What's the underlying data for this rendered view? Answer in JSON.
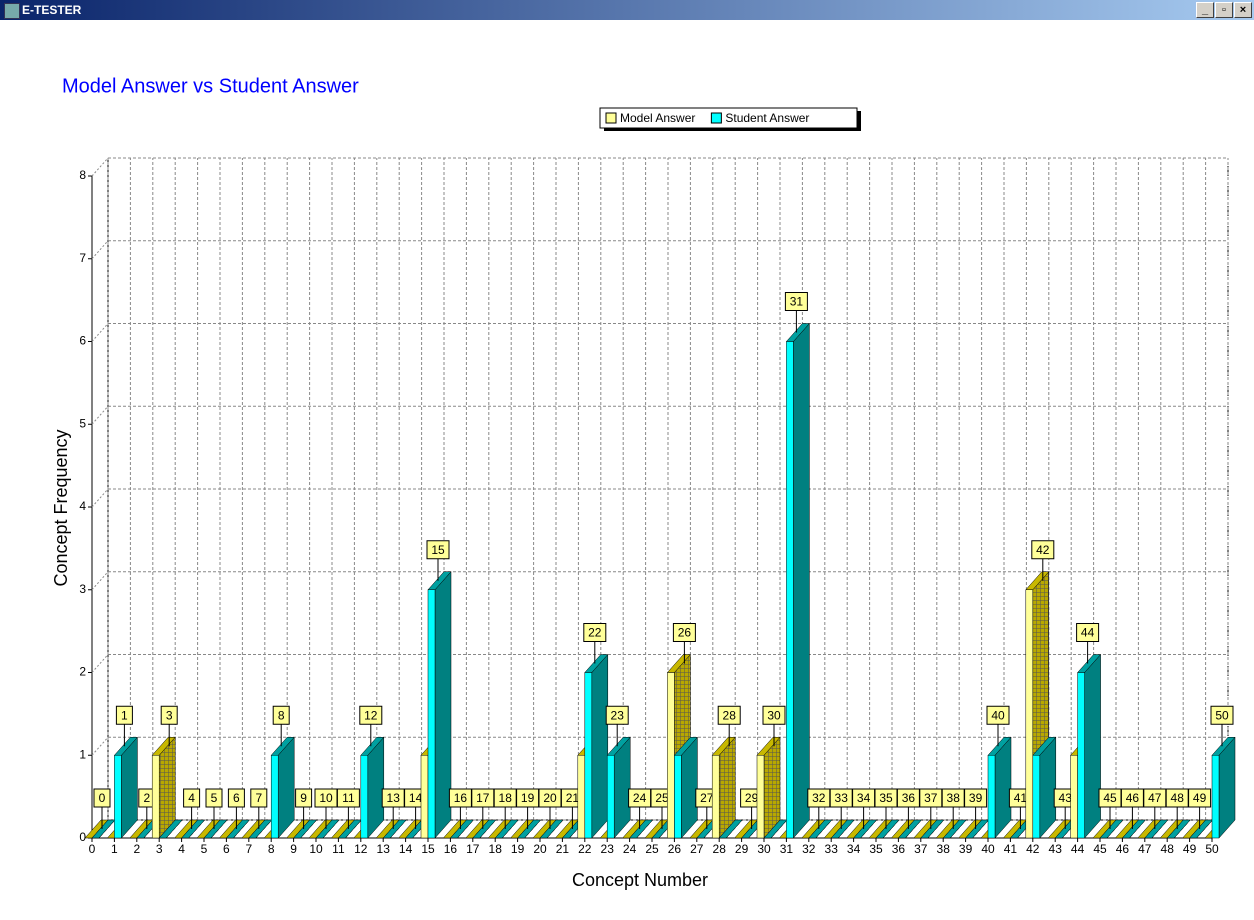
{
  "window": {
    "title": "E-TESTER"
  },
  "chart_data": {
    "type": "bar3d",
    "title": "Model Answer vs Student Answer",
    "x_label": "Concept Number",
    "y_label": "Concept Frequency",
    "categories": [
      "0",
      "1",
      "2",
      "3",
      "4",
      "5",
      "6",
      "7",
      "8",
      "9",
      "10",
      "11",
      "12",
      "13",
      "14",
      "15",
      "16",
      "17",
      "18",
      "19",
      "20",
      "21",
      "22",
      "23",
      "24",
      "25",
      "26",
      "27",
      "28",
      "29",
      "30",
      "31",
      "32",
      "33",
      "34",
      "35",
      "36",
      "37",
      "38",
      "39",
      "40",
      "41",
      "42",
      "43",
      "44",
      "45",
      "46",
      "47",
      "48",
      "49",
      "50"
    ],
    "series": [
      {
        "name": "Model Answer",
        "color": "#ffff99",
        "values": [
          0,
          0,
          0,
          1,
          0,
          0,
          0,
          0,
          0,
          0,
          0,
          0,
          0,
          0,
          0,
          1,
          0,
          0,
          0,
          0,
          0,
          0,
          1,
          0,
          0,
          0,
          2,
          0,
          1,
          0,
          1,
          0,
          0,
          0,
          0,
          0,
          0,
          0,
          0,
          0,
          0,
          0,
          3,
          0,
          1,
          0,
          0,
          0,
          0,
          0,
          0
        ]
      },
      {
        "name": "Student Answer",
        "color": "#00ffff",
        "values": [
          0,
          1,
          0,
          0,
          0,
          0,
          0,
          0,
          1,
          0,
          0,
          0,
          1,
          0,
          0,
          3,
          0,
          0,
          0,
          0,
          0,
          0,
          2,
          1,
          0,
          0,
          1,
          0,
          0,
          0,
          0,
          6,
          0,
          0,
          0,
          0,
          0,
          0,
          0,
          0,
          1,
          0,
          1,
          0,
          2,
          0,
          0,
          0,
          0,
          0,
          1
        ]
      }
    ],
    "ylim": [
      0,
      8
    ],
    "yticks": [
      0,
      1,
      2,
      3,
      4,
      5,
      6,
      7,
      8
    ],
    "grid": true
  }
}
